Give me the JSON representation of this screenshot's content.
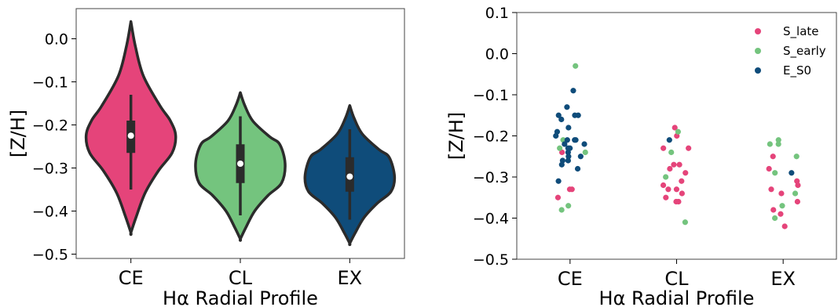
{
  "colors": {
    "S_late": "#e5447a",
    "S_early": "#74c47e",
    "E_S0": "#0f4c7a",
    "outline": "#2b2b2b"
  },
  "chart_data": [
    {
      "type": "violin",
      "categories": [
        "CE",
        "CL",
        "EX"
      ],
      "xlabel": "Hα Radial Profile",
      "ylabel": "[Z/H]",
      "ylim": [
        -0.51,
        0.07
      ],
      "yticks": [
        0.0,
        -0.1,
        -0.2,
        -0.3,
        -0.4,
        -0.5
      ],
      "ytick_labels": [
        "0.0",
        "−0.1",
        "−0.2",
        "−0.3",
        "−0.4",
        "−0.5"
      ],
      "violins": [
        {
          "category": "CE",
          "color": "#e5447a",
          "median": -0.225,
          "q1": -0.265,
          "q3": -0.19,
          "whisker_low": -0.35,
          "whisker_high": -0.13,
          "min": -0.45,
          "max": 0.04
        },
        {
          "category": "CL",
          "color": "#74c47e",
          "median": -0.29,
          "q1": -0.335,
          "q3": -0.245,
          "whisker_low": -0.41,
          "whisker_high": -0.18,
          "min": -0.465,
          "max": -0.125
        },
        {
          "category": "EX",
          "color": "#0f4c7a",
          "median": -0.32,
          "q1": -0.355,
          "q3": -0.275,
          "whisker_low": -0.42,
          "whisker_high": -0.21,
          "min": -0.475,
          "max": -0.155
        }
      ]
    },
    {
      "type": "scatter",
      "categories": [
        "CE",
        "CL",
        "EX"
      ],
      "xlabel": "Hα Radial Profile",
      "ylabel": "[Z/H]",
      "ylim": [
        -0.5,
        0.1
      ],
      "yticks": [
        0.1,
        0.0,
        -0.1,
        -0.2,
        -0.3,
        -0.4,
        -0.5
      ],
      "ytick_labels": [
        "0.1",
        "0.0",
        "−0.1",
        "−0.2",
        "−0.3",
        "−0.4",
        "−0.5"
      ],
      "legend_position": "top-right",
      "series": [
        {
          "name": "S_late",
          "color": "#e5447a",
          "points": [
            {
              "x": "CE",
              "y": -0.33
            },
            {
              "x": "CE",
              "y": -0.33
            },
            {
              "x": "CE",
              "y": -0.35
            },
            {
              "x": "CE",
              "y": -0.24
            },
            {
              "x": "CL",
              "y": -0.18
            },
            {
              "x": "CL",
              "y": -0.2
            },
            {
              "x": "CL",
              "y": -0.23
            },
            {
              "x": "CL",
              "y": -0.23
            },
            {
              "x": "CL",
              "y": -0.27
            },
            {
              "x": "CL",
              "y": -0.27
            },
            {
              "x": "CL",
              "y": -0.28
            },
            {
              "x": "CL",
              "y": -0.29
            },
            {
              "x": "CL",
              "y": -0.31
            },
            {
              "x": "CL",
              "y": -0.32
            },
            {
              "x": "CL",
              "y": -0.33
            },
            {
              "x": "CL",
              "y": -0.33
            },
            {
              "x": "CL",
              "y": -0.34
            },
            {
              "x": "CL",
              "y": -0.35
            },
            {
              "x": "CL",
              "y": -0.36
            },
            {
              "x": "CL",
              "y": -0.36
            },
            {
              "x": "EX",
              "y": -0.25
            },
            {
              "x": "EX",
              "y": -0.28
            },
            {
              "x": "EX",
              "y": -0.31
            },
            {
              "x": "EX",
              "y": -0.32
            },
            {
              "x": "EX",
              "y": -0.33
            },
            {
              "x": "EX",
              "y": -0.34
            },
            {
              "x": "EX",
              "y": -0.36
            },
            {
              "x": "EX",
              "y": -0.38
            },
            {
              "x": "EX",
              "y": -0.39
            },
            {
              "x": "EX",
              "y": -0.42
            }
          ]
        },
        {
          "name": "S_early",
          "color": "#74c47e",
          "points": [
            {
              "x": "CE",
              "y": -0.03
            },
            {
              "x": "CE",
              "y": -0.21
            },
            {
              "x": "CE",
              "y": -0.23
            },
            {
              "x": "CE",
              "y": -0.24
            },
            {
              "x": "CE",
              "y": -0.37
            },
            {
              "x": "CE",
              "y": -0.38
            },
            {
              "x": "CL",
              "y": -0.19
            },
            {
              "x": "CL",
              "y": -0.24
            },
            {
              "x": "CL",
              "y": -0.3
            },
            {
              "x": "CL",
              "y": -0.41
            },
            {
              "x": "EX",
              "y": -0.21
            },
            {
              "x": "EX",
              "y": -0.22
            },
            {
              "x": "EX",
              "y": -0.22
            },
            {
              "x": "EX",
              "y": -0.25
            },
            {
              "x": "EX",
              "y": -0.29
            },
            {
              "x": "EX",
              "y": -0.34
            },
            {
              "x": "EX",
              "y": -0.37
            },
            {
              "x": "EX",
              "y": -0.4
            }
          ]
        },
        {
          "name": "E_S0",
          "color": "#0f4c7a",
          "points": [
            {
              "x": "CE",
              "y": -0.09
            },
            {
              "x": "CE",
              "y": -0.13
            },
            {
              "x": "CE",
              "y": -0.15
            },
            {
              "x": "CE",
              "y": -0.15
            },
            {
              "x": "CE",
              "y": -0.15
            },
            {
              "x": "CE",
              "y": -0.16
            },
            {
              "x": "CE",
              "y": -0.18
            },
            {
              "x": "CE",
              "y": -0.19
            },
            {
              "x": "CE",
              "y": -0.2
            },
            {
              "x": "CE",
              "y": -0.21
            },
            {
              "x": "CE",
              "y": -0.21
            },
            {
              "x": "CE",
              "y": -0.21
            },
            {
              "x": "CE",
              "y": -0.22
            },
            {
              "x": "CE",
              "y": -0.22
            },
            {
              "x": "CE",
              "y": -0.23
            },
            {
              "x": "CE",
              "y": -0.23
            },
            {
              "x": "CE",
              "y": -0.24
            },
            {
              "x": "CE",
              "y": -0.25
            },
            {
              "x": "CE",
              "y": -0.25
            },
            {
              "x": "CE",
              "y": -0.26
            },
            {
              "x": "CE",
              "y": -0.26
            },
            {
              "x": "CE",
              "y": -0.27
            },
            {
              "x": "CE",
              "y": -0.28
            },
            {
              "x": "CE",
              "y": -0.31
            },
            {
              "x": "CL",
              "y": -0.21
            },
            {
              "x": "EX",
              "y": -0.29
            }
          ]
        }
      ]
    }
  ]
}
